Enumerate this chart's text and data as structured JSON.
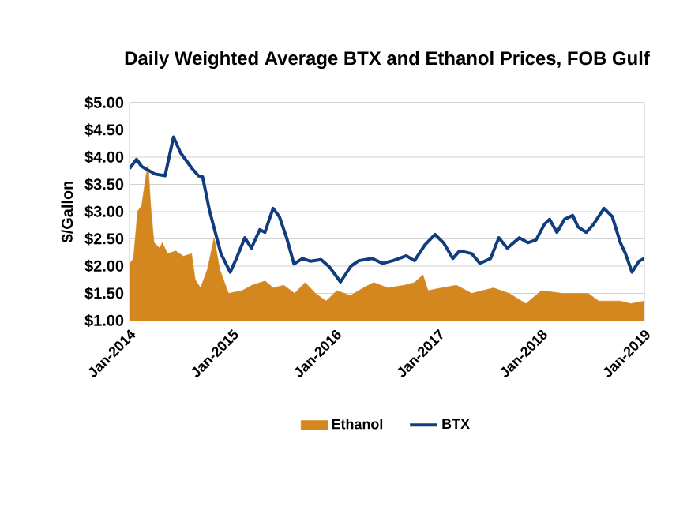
{
  "chart_data": {
    "type": "line",
    "title": "Daily Weighted Average BTX and Ethanol Prices, FOB Gulf",
    "ylabel": "$/Gallon",
    "xlim": [
      "2014-01-01",
      "2019-01-01"
    ],
    "xticks": [
      {
        "value": "2014-01-01",
        "label": "Jan-2014"
      },
      {
        "value": "2015-01-01",
        "label": "Jan-2015"
      },
      {
        "value": "2016-01-01",
        "label": "Jan-2016"
      },
      {
        "value": "2017-01-01",
        "label": "Jan-2017"
      },
      {
        "value": "2018-01-01",
        "label": "Jan-2018"
      },
      {
        "value": "2019-01-01",
        "label": "Jan-2019"
      }
    ],
    "ylim": [
      1,
      5
    ],
    "yticks": [
      {
        "value": 1,
        "label": "$1.00"
      },
      {
        "value": 1.5,
        "label": "$1.50"
      },
      {
        "value": 2,
        "label": "$2.00"
      },
      {
        "value": 2.5,
        "label": "$2.50"
      },
      {
        "value": 3,
        "label": "$3.00"
      },
      {
        "value": 3.5,
        "label": "$3.50"
      },
      {
        "value": 4,
        "label": "$4.00"
      },
      {
        "value": 4.5,
        "label": "$4.50"
      },
      {
        "value": 5,
        "label": "$5.00"
      }
    ],
    "grid": "y",
    "legend": "bottom",
    "series": [
      {
        "name": "Ethanol",
        "type": "area",
        "color": "#d4861f",
        "x": [
          "2014-01-01",
          "2014-01-15",
          "2014-01-30",
          "2014-02-13",
          "2014-02-28",
          "2014-03-08",
          "2014-03-17",
          "2014-03-29",
          "2014-04-18",
          "2014-04-27",
          "2014-05-16",
          "2014-06-14",
          "2014-07-11",
          "2014-08-09",
          "2014-08-22",
          "2014-09-10",
          "2014-10-04",
          "2014-10-28",
          "2014-11-17",
          "2014-12-18",
          "2015-02-04",
          "2015-03-11",
          "2015-04-27",
          "2015-05-25",
          "2015-07-02",
          "2015-08-09",
          "2015-09-16",
          "2015-10-22",
          "2015-11-29",
          "2016-01-06",
          "2016-02-23",
          "2016-04-09",
          "2016-05-16",
          "2016-07-05",
          "2016-09-02",
          "2016-10-08",
          "2016-11-07",
          "2016-11-25",
          "2017-01-12",
          "2017-03-06",
          "2017-04-29",
          "2017-07-15",
          "2017-09-09",
          "2017-11-07",
          "2018-01-01",
          "2018-03-17",
          "2018-06-16",
          "2018-07-23",
          "2018-10-08",
          "2018-11-14",
          "2019-01-01"
        ],
        "values": [
          2.04,
          2.14,
          3.01,
          3.11,
          3.64,
          3.88,
          3.11,
          2.43,
          2.33,
          2.43,
          2.23,
          2.28,
          2.18,
          2.23,
          1.75,
          1.6,
          1.94,
          2.52,
          1.94,
          1.5,
          1.55,
          1.65,
          1.73,
          1.6,
          1.65,
          1.5,
          1.7,
          1.5,
          1.36,
          1.55,
          1.46,
          1.6,
          1.7,
          1.6,
          1.65,
          1.7,
          1.84,
          1.55,
          1.6,
          1.65,
          1.5,
          1.6,
          1.5,
          1.31,
          1.55,
          1.5,
          1.5,
          1.36,
          1.36,
          1.31,
          1.36
        ]
      },
      {
        "name": "BTX",
        "color": "#0f3d7d",
        "x": [
          "2014-01-01",
          "2014-01-26",
          "2014-02-13",
          "2014-04-01",
          "2014-05-07",
          "2014-06-06",
          "2014-07-01",
          "2014-08-11",
          "2014-09-02",
          "2014-09-17",
          "2014-10-12",
          "2014-11-21",
          "2014-12-24",
          "2015-01-15",
          "2015-02-14",
          "2015-03-09",
          "2015-04-08",
          "2015-04-26",
          "2015-05-25",
          "2015-06-16",
          "2015-07-12",
          "2015-08-07",
          "2015-09-06",
          "2015-10-05",
          "2015-11-11",
          "2015-12-10",
          "2016-01-19",
          "2016-02-25",
          "2016-03-24",
          "2016-05-11",
          "2016-06-16",
          "2016-07-23",
          "2016-09-09",
          "2016-10-08",
          "2016-11-14",
          "2016-12-20",
          "2017-01-19",
          "2017-02-21",
          "2017-03-17",
          "2017-04-29",
          "2017-05-28",
          "2017-07-05",
          "2017-08-03",
          "2017-09-02",
          "2017-10-15",
          "2017-11-14",
          "2017-12-13",
          "2018-01-12",
          "2018-01-30",
          "2018-02-25",
          "2018-03-24",
          "2018-04-22",
          "2018-05-11",
          "2018-06-09",
          "2018-07-05",
          "2018-08-11",
          "2018-09-09",
          "2018-10-08",
          "2018-10-26",
          "2018-11-18",
          "2018-12-13",
          "2019-01-01"
        ],
        "values": [
          3.79,
          3.96,
          3.83,
          3.69,
          3.66,
          4.37,
          4.08,
          3.79,
          3.66,
          3.64,
          3.01,
          2.23,
          1.89,
          2.14,
          2.52,
          2.33,
          2.67,
          2.62,
          3.06,
          2.91,
          2.52,
          2.04,
          2.14,
          2.09,
          2.12,
          1.99,
          1.71,
          2.0,
          2.1,
          2.14,
          2.05,
          2.1,
          2.19,
          2.1,
          2.39,
          2.58,
          2.43,
          2.14,
          2.28,
          2.23,
          2.05,
          2.14,
          2.52,
          2.33,
          2.52,
          2.43,
          2.48,
          2.77,
          2.86,
          2.62,
          2.86,
          2.93,
          2.72,
          2.62,
          2.77,
          3.06,
          2.91,
          2.43,
          2.23,
          1.89,
          2.09,
          2.14
        ]
      }
    ]
  }
}
